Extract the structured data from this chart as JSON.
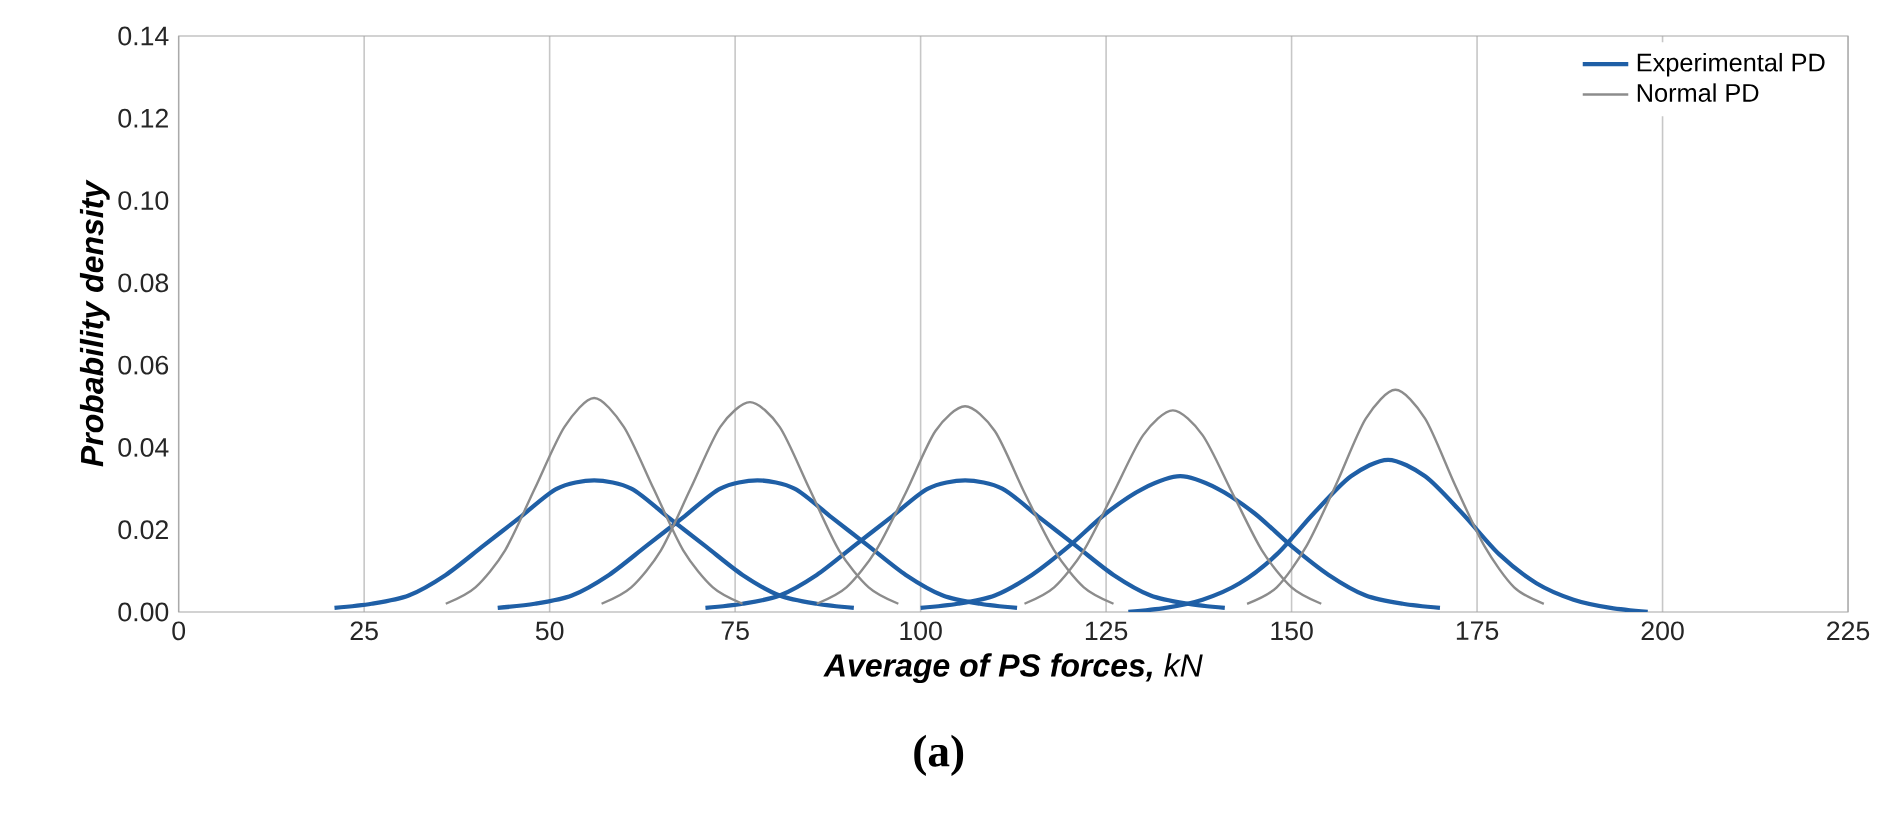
{
  "chart_data": {
    "type": "line",
    "xlabel": "**Average of PS forces,** kN",
    "ylabel": "Probability density",
    "xlim": [
      0,
      225
    ],
    "xticks": [
      0,
      25,
      50,
      75,
      100,
      125,
      150,
      175,
      200,
      225
    ],
    "ylim": [
      0,
      0.14
    ],
    "yticks": [
      {
        "value": 0,
        "label": "0.00"
      },
      {
        "value": 0.02,
        "label": "0.02"
      },
      {
        "value": 0.04,
        "label": "0.04"
      },
      {
        "value": 0.06,
        "label": "0.06"
      },
      {
        "value": 0.08,
        "label": "0.08"
      },
      {
        "value": 0.1,
        "label": "0.10"
      },
      {
        "value": 0.12,
        "label": "0.12"
      },
      {
        "value": 0.14,
        "label": "0.14"
      }
    ],
    "grid": "x",
    "legend": "top right",
    "marker": "none",
    "line_style": "solid",
    "annotations": [
      "**(a)**"
    ],
    "series": [
      {
        "name": "Experimental PD",
        "color": "#1f5fa6",
        "x": [
          21,
          26,
          31,
          36,
          41,
          46,
          51,
          56,
          61,
          66,
          71,
          76,
          81,
          86,
          91
        ],
        "values": [
          0.001,
          0.002,
          0.004,
          0.009,
          0.016,
          0.023,
          0.03,
          0.032,
          0.03,
          0.023,
          0.016,
          0.009,
          0.004,
          0.002,
          0.001
        ]
      },
      {
        "color": "#1f5fa6",
        "x": [
          43,
          48,
          53,
          58,
          63,
          68,
          73,
          78,
          83,
          88,
          93,
          98,
          103,
          108,
          113
        ],
        "values": [
          0.001,
          0.002,
          0.004,
          0.009,
          0.016,
          0.023,
          0.03,
          0.032,
          0.03,
          0.023,
          0.016,
          0.009,
          0.004,
          0.002,
          0.001
        ]
      },
      {
        "color": "#1f5fa6",
        "x": [
          71,
          76,
          81,
          86,
          91,
          96,
          101,
          106,
          111,
          116,
          121,
          126,
          131,
          136,
          141
        ],
        "values": [
          0.001,
          0.002,
          0.004,
          0.009,
          0.016,
          0.023,
          0.03,
          0.032,
          0.03,
          0.023,
          0.016,
          0.009,
          0.004,
          0.002,
          0.001
        ]
      },
      {
        "color": "#1f5fa6",
        "x": [
          100,
          105,
          110,
          115,
          120,
          125,
          130,
          135,
          140,
          145,
          150,
          155,
          160,
          165,
          170
        ],
        "values": [
          0.001,
          0.002,
          0.004,
          0.009,
          0.016,
          0.024,
          0.03,
          0.033,
          0.03,
          0.024,
          0.016,
          0.009,
          0.004,
          0.002,
          0.001
        ]
      },
      {
        "color": "#1f5fa6",
        "x": [
          128,
          133,
          138,
          143,
          148,
          153,
          158,
          163,
          168,
          173,
          178,
          183,
          188,
          193,
          198
        ],
        "values": [
          0.0,
          0.001,
          0.003,
          0.007,
          0.014,
          0.024,
          0.033,
          0.037,
          0.033,
          0.024,
          0.014,
          0.007,
          0.003,
          0.001,
          0.0
        ]
      },
      {
        "name": "Normal PD",
        "color": "#8c8c8c",
        "x": [
          36,
          40,
          44,
          48,
          52,
          56,
          60,
          64,
          68,
          72,
          76
        ],
        "values": [
          0.002,
          0.006,
          0.015,
          0.03,
          0.045,
          0.052,
          0.045,
          0.03,
          0.015,
          0.006,
          0.002
        ]
      },
      {
        "color": "#8c8c8c",
        "x": [
          57,
          61,
          65,
          69,
          73,
          77,
          81,
          85,
          89,
          93,
          97
        ],
        "values": [
          0.002,
          0.006,
          0.015,
          0.03,
          0.045,
          0.051,
          0.045,
          0.03,
          0.015,
          0.006,
          0.002
        ]
      },
      {
        "color": "#8c8c8c",
        "x": [
          86,
          90,
          94,
          98,
          102,
          106,
          110,
          114,
          118,
          122,
          126
        ],
        "values": [
          0.002,
          0.006,
          0.015,
          0.029,
          0.044,
          0.05,
          0.044,
          0.029,
          0.015,
          0.006,
          0.002
        ]
      },
      {
        "color": "#8c8c8c",
        "x": [
          114,
          118,
          122,
          126,
          130,
          134,
          138,
          142,
          146,
          150,
          154
        ],
        "values": [
          0.002,
          0.006,
          0.015,
          0.029,
          0.043,
          0.049,
          0.043,
          0.029,
          0.015,
          0.006,
          0.002
        ]
      },
      {
        "color": "#8c8c8c",
        "x": [
          144,
          148,
          152,
          156,
          160,
          164,
          168,
          172,
          176,
          180,
          184
        ],
        "values": [
          0.002,
          0.006,
          0.016,
          0.031,
          0.047,
          0.054,
          0.047,
          0.031,
          0.016,
          0.006,
          0.002
        ]
      }
    ]
  }
}
